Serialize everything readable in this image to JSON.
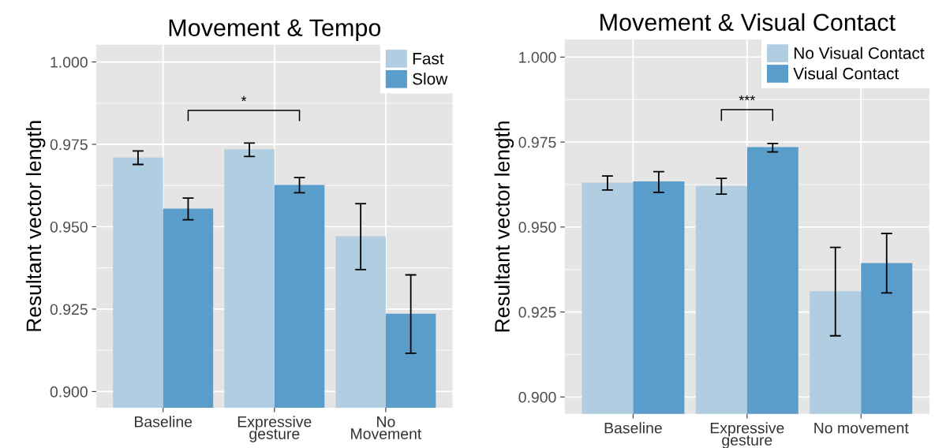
{
  "chart_data": [
    {
      "type": "bar",
      "title": "Movement & Tempo",
      "ylabel": "Resultant vector length",
      "categories": [
        "Baseline",
        "Expressive\ngesture",
        "No\nMovement"
      ],
      "series": [
        {
          "name": "Fast",
          "color": "#b0cde1",
          "values": [
            0.971,
            0.9735,
            0.9471
          ],
          "errors": [
            [
              0.9689,
              0.973
            ],
            [
              0.9713,
              0.9754
            ],
            [
              0.937,
              0.957
            ]
          ]
        },
        {
          "name": "Slow",
          "color": "#5a9dca",
          "values": [
            0.9555,
            0.9627,
            0.9236
          ],
          "errors": [
            [
              0.9521,
              0.9587
            ],
            [
              0.9603,
              0.9649
            ],
            [
              0.9116,
              0.9354
            ]
          ]
        }
      ],
      "ylim": [
        0.8951,
        1.0052
      ],
      "yticks": [
        {
          "value": 0.9,
          "label": "0.900"
        },
        {
          "value": 0.925,
          "label": "0.925"
        },
        {
          "value": 0.95,
          "label": "0.950"
        },
        {
          "value": 0.975,
          "label": "0.975"
        },
        {
          "value": 1.0,
          "label": "1.000"
        }
      ],
      "annotations": [
        "*"
      ],
      "grid": true,
      "legend": "top right"
    },
    {
      "type": "bar",
      "title": "Movement & Visual Contact",
      "ylabel": "Resultant vector length",
      "categories": [
        "Baseline",
        "Expressive\ngesture",
        "No movement"
      ],
      "series": [
        {
          "name": "No Visual Contact",
          "color": "#b0cde1",
          "values": [
            0.9631,
            0.9621,
            0.9311
          ],
          "errors": [
            [
              0.9609,
              0.965
            ],
            [
              0.9597,
              0.9643
            ],
            [
              0.918,
              0.944
            ]
          ]
        },
        {
          "name": "Visual Contact",
          "color": "#5a9dca",
          "values": [
            0.9634,
            0.9735,
            0.9394
          ],
          "errors": [
            [
              0.9602,
              0.9663
            ],
            [
              0.9721,
              0.9746
            ],
            [
              0.9306,
              0.9481
            ]
          ]
        }
      ],
      "ylim": [
        0.895,
        1.0052
      ],
      "yticks": [
        {
          "value": 0.9,
          "label": "0.900"
        },
        {
          "value": 0.925,
          "label": "0.925"
        },
        {
          "value": 0.95,
          "label": "0.950"
        },
        {
          "value": 0.975,
          "label": "0.975"
        },
        {
          "value": 1.0,
          "label": "1.000"
        }
      ],
      "annotations": [
        "***"
      ],
      "grid": true,
      "legend": "top right"
    }
  ]
}
